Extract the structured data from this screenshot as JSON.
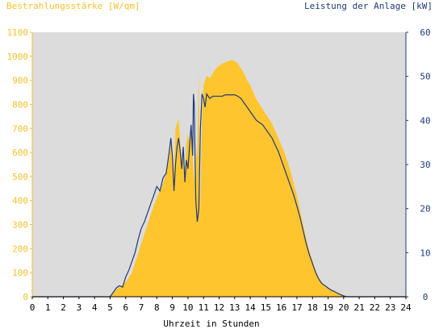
{
  "chart_data": {
    "type": "area",
    "title_left": "Bestrahlungsstärke [W/qm]",
    "title_right": "Leistung der Anlage [kW]",
    "xlabel": "Uhrzeit in Stunden",
    "xlim": [
      0,
      24
    ],
    "ylim_left": [
      0,
      1100
    ],
    "ylim_right": [
      0,
      60
    ],
    "x_ticks": [
      "0",
      "1",
      "2",
      "3",
      "4",
      "5",
      "6",
      "7",
      "8",
      "9",
      "10",
      "11",
      "12",
      "13",
      "14",
      "15",
      "16",
      "17",
      "18",
      "19",
      "20",
      "21",
      "22",
      "23",
      "24"
    ],
    "y_left_ticks": [
      "0",
      "100",
      "200",
      "300",
      "400",
      "500",
      "600",
      "700",
      "800",
      "900",
      "1000",
      "1100"
    ],
    "y_right_ticks": [
      "0",
      "10",
      "20",
      "30",
      "40",
      "50",
      "60"
    ],
    "grid": false,
    "colors": {
      "plot_bg": "#dcdcdc",
      "irradiance_fill": "#ffc52e",
      "power_line": "#1f3a7a",
      "left_axis_text": "#f2c12e",
      "right_axis_text": "#1f3a7a"
    },
    "series": [
      {
        "name": "Bestrahlungsstärke [W/qm]",
        "axis": "left",
        "points": [
          [
            0,
            0
          ],
          [
            4.9,
            0
          ],
          [
            5.0,
            5
          ],
          [
            5.2,
            15
          ],
          [
            5.4,
            30
          ],
          [
            5.6,
            40
          ],
          [
            5.8,
            50
          ],
          [
            6.0,
            60
          ],
          [
            6.2,
            80
          ],
          [
            6.4,
            100
          ],
          [
            6.6,
            140
          ],
          [
            6.8,
            180
          ],
          [
            7.0,
            220
          ],
          [
            7.2,
            260
          ],
          [
            7.4,
            300
          ],
          [
            7.6,
            340
          ],
          [
            7.8,
            380
          ],
          [
            8.0,
            410
          ],
          [
            8.2,
            440
          ],
          [
            8.4,
            470
          ],
          [
            8.6,
            520
          ],
          [
            8.8,
            580
          ],
          [
            8.9,
            650
          ],
          [
            9.0,
            600
          ],
          [
            9.1,
            520
          ],
          [
            9.2,
            700
          ],
          [
            9.3,
            720
          ],
          [
            9.4,
            740
          ],
          [
            9.5,
            650
          ],
          [
            9.6,
            560
          ],
          [
            9.7,
            580
          ],
          [
            9.8,
            520
          ],
          [
            9.9,
            640
          ],
          [
            10.0,
            680
          ],
          [
            10.1,
            640
          ],
          [
            10.2,
            710
          ],
          [
            10.3,
            600
          ],
          [
            10.4,
            480
          ],
          [
            10.5,
            560
          ],
          [
            10.6,
            620
          ],
          [
            10.7,
            930
          ],
          [
            10.75,
            520
          ],
          [
            10.8,
            350
          ],
          [
            10.9,
            760
          ],
          [
            11.0,
            880
          ],
          [
            11.2,
            920
          ],
          [
            11.4,
            910
          ],
          [
            11.6,
            930
          ],
          [
            11.8,
            950
          ],
          [
            12.0,
            960
          ],
          [
            12.2,
            970
          ],
          [
            12.4,
            975
          ],
          [
            12.6,
            980
          ],
          [
            12.8,
            985
          ],
          [
            13.0,
            980
          ],
          [
            13.2,
            970
          ],
          [
            13.4,
            950
          ],
          [
            13.6,
            930
          ],
          [
            13.8,
            900
          ],
          [
            14.0,
            880
          ],
          [
            14.2,
            850
          ],
          [
            14.4,
            820
          ],
          [
            14.6,
            800
          ],
          [
            14.8,
            780
          ],
          [
            15.0,
            760
          ],
          [
            15.2,
            740
          ],
          [
            15.4,
            720
          ],
          [
            15.6,
            690
          ],
          [
            15.8,
            660
          ],
          [
            16.0,
            630
          ],
          [
            16.2,
            600
          ],
          [
            16.4,
            560
          ],
          [
            16.6,
            520
          ],
          [
            16.8,
            470
          ],
          [
            17.0,
            420
          ],
          [
            17.2,
            360
          ],
          [
            17.4,
            300
          ],
          [
            17.6,
            240
          ],
          [
            17.8,
            190
          ],
          [
            18.0,
            150
          ],
          [
            18.2,
            110
          ],
          [
            18.4,
            80
          ],
          [
            18.6,
            60
          ],
          [
            18.8,
            45
          ],
          [
            19.0,
            35
          ],
          [
            19.2,
            28
          ],
          [
            19.4,
            22
          ],
          [
            19.6,
            15
          ],
          [
            19.8,
            10
          ],
          [
            20.0,
            5
          ],
          [
            20.2,
            0
          ],
          [
            24,
            0
          ]
        ]
      },
      {
        "name": "Leistung der Anlage [kW]",
        "axis": "right",
        "points": [
          [
            0,
            0
          ],
          [
            5.0,
            0
          ],
          [
            5.2,
            1
          ],
          [
            5.4,
            2
          ],
          [
            5.6,
            2.5
          ],
          [
            5.8,
            2.2
          ],
          [
            6.0,
            4.5
          ],
          [
            6.2,
            6
          ],
          [
            6.4,
            8
          ],
          [
            6.6,
            10
          ],
          [
            6.8,
            13
          ],
          [
            7.0,
            15.5
          ],
          [
            7.2,
            17
          ],
          [
            7.4,
            19
          ],
          [
            7.6,
            21
          ],
          [
            7.8,
            23
          ],
          [
            8.0,
            25
          ],
          [
            8.2,
            24
          ],
          [
            8.4,
            27
          ],
          [
            8.6,
            28
          ],
          [
            8.8,
            33
          ],
          [
            8.9,
            36
          ],
          [
            9.0,
            32
          ],
          [
            9.1,
            24
          ],
          [
            9.2,
            30
          ],
          [
            9.3,
            34
          ],
          [
            9.4,
            36
          ],
          [
            9.5,
            33
          ],
          [
            9.6,
            29
          ],
          [
            9.7,
            34
          ],
          [
            9.8,
            26
          ],
          [
            9.9,
            31
          ],
          [
            10.0,
            29
          ],
          [
            10.1,
            34
          ],
          [
            10.2,
            39
          ],
          [
            10.3,
            32
          ],
          [
            10.35,
            46
          ],
          [
            10.4,
            44
          ],
          [
            10.5,
            22
          ],
          [
            10.6,
            17
          ],
          [
            10.7,
            20
          ],
          [
            10.8,
            38
          ],
          [
            10.9,
            46
          ],
          [
            11.0,
            45
          ],
          [
            11.1,
            43
          ],
          [
            11.2,
            46
          ],
          [
            11.4,
            45
          ],
          [
            11.6,
            45.5
          ],
          [
            11.8,
            45.5
          ],
          [
            12.0,
            45.5
          ],
          [
            12.2,
            45.5
          ],
          [
            12.4,
            45.8
          ],
          [
            12.6,
            45.8
          ],
          [
            12.8,
            45.8
          ],
          [
            13.0,
            45.8
          ],
          [
            13.2,
            45.5
          ],
          [
            13.4,
            45
          ],
          [
            13.6,
            44
          ],
          [
            13.8,
            43
          ],
          [
            14.0,
            42
          ],
          [
            14.2,
            41
          ],
          [
            14.4,
            40
          ],
          [
            14.6,
            39.5
          ],
          [
            14.8,
            39
          ],
          [
            15.0,
            38
          ],
          [
            15.2,
            37
          ],
          [
            15.4,
            36
          ],
          [
            15.6,
            34.5
          ],
          [
            15.8,
            33
          ],
          [
            16.0,
            31
          ],
          [
            16.2,
            29
          ],
          [
            16.4,
            27
          ],
          [
            16.6,
            25
          ],
          [
            16.8,
            23
          ],
          [
            17.0,
            20.5
          ],
          [
            17.2,
            18
          ],
          [
            17.4,
            15
          ],
          [
            17.6,
            12
          ],
          [
            17.8,
            9.5
          ],
          [
            18.0,
            7.5
          ],
          [
            18.2,
            5.5
          ],
          [
            18.4,
            4
          ],
          [
            18.6,
            3
          ],
          [
            18.8,
            2.5
          ],
          [
            19.0,
            2
          ],
          [
            19.2,
            1.5
          ],
          [
            19.4,
            1.2
          ],
          [
            19.6,
            0.8
          ],
          [
            19.8,
            0.5
          ],
          [
            20.0,
            0.2
          ],
          [
            20.2,
            0
          ],
          [
            24,
            0
          ]
        ]
      }
    ]
  }
}
